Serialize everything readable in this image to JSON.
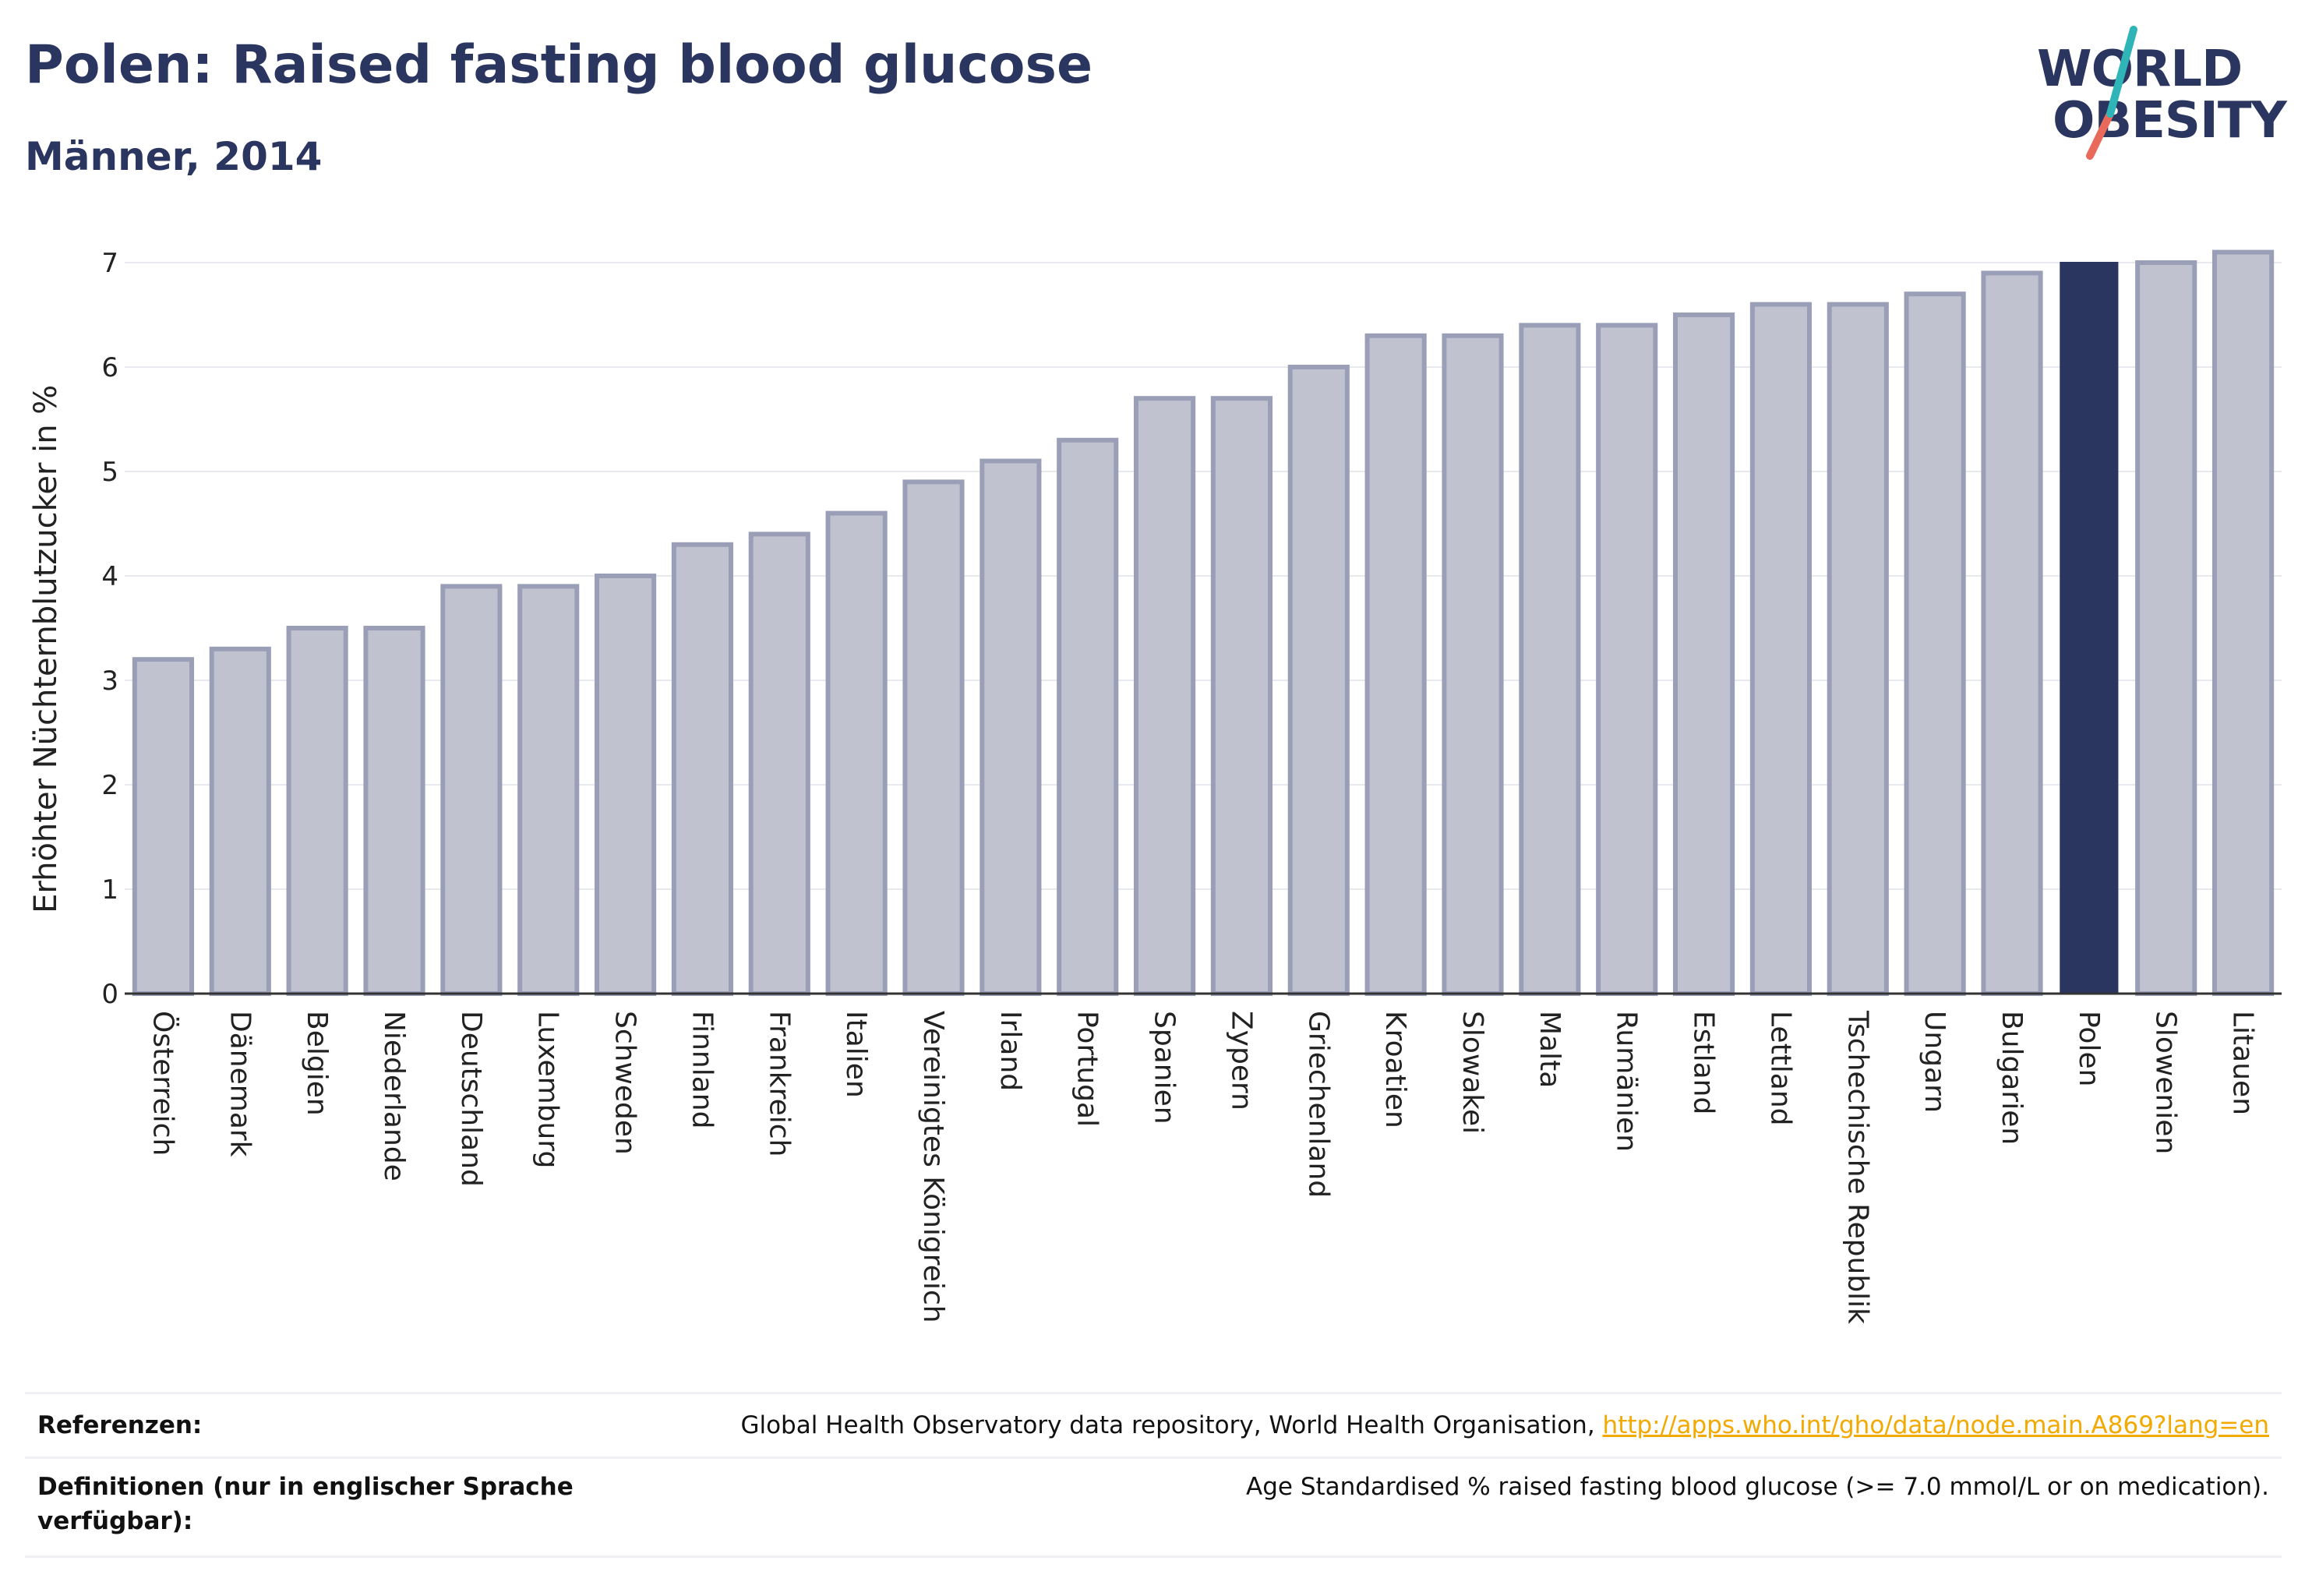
{
  "header": {
    "title": "Polen: Raised fasting blood glucose",
    "subtitle": "Männer, 2014"
  },
  "logo": {
    "line1": "WORLD",
    "line2": "OBESITY"
  },
  "colors": {
    "highlight": "#2b3660",
    "bar_fill": "#c0c3cf",
    "bar_stroke": "#9a9fb7",
    "brand_navy": "#2b3660",
    "brand_teal": "#2fb5b8",
    "brand_coral": "#e96a5b",
    "link": "#f2a900"
  },
  "chart_data": {
    "type": "bar",
    "title": "Polen: Raised fasting blood glucose",
    "subtitle": "Männer, 2014",
    "ylabel": "Erhöhter Nüchternblutzucker in %",
    "xlabel": "",
    "ylim": [
      0,
      7.3
    ],
    "yticks": [
      0,
      1,
      2,
      3,
      4,
      5,
      6,
      7
    ],
    "grid": true,
    "highlight": "Polen",
    "categories": [
      "Österreich",
      "Dänemark",
      "Belgien",
      "Niederlande",
      "Deutschland",
      "Luxemburg",
      "Schweden",
      "Finnland",
      "Frankreich",
      "Italien",
      "Vereinigtes Königreich",
      "Irland",
      "Portugal",
      "Spanien",
      "Zypern",
      "Griechenland",
      "Kroatien",
      "Slowakei",
      "Malta",
      "Rumänien",
      "Estland",
      "Lettland",
      "Tschechische Republik",
      "Ungarn",
      "Bulgarien",
      "Polen",
      "Slowenien",
      "Litauen"
    ],
    "values": [
      3.2,
      3.3,
      3.5,
      3.5,
      3.9,
      3.9,
      4.0,
      4.3,
      4.4,
      4.6,
      4.9,
      5.1,
      5.3,
      5.7,
      5.7,
      6.0,
      6.3,
      6.3,
      6.4,
      6.4,
      6.5,
      6.6,
      6.6,
      6.7,
      6.9,
      7.0,
      7.0,
      7.1
    ]
  },
  "footer": {
    "references_label": "Referenzen:",
    "references_text": "Global Health Observatory data repository, World Health Organisation, ",
    "references_link": "http://apps.who.int/gho/data/node.main.A869?lang=en",
    "definitions_label": "Definitionen (nur in englischer Sprache verfügbar):",
    "definitions_text": "Age Standardised % raised fasting blood glucose (>= 7.0 mmol/L or on medication)."
  }
}
